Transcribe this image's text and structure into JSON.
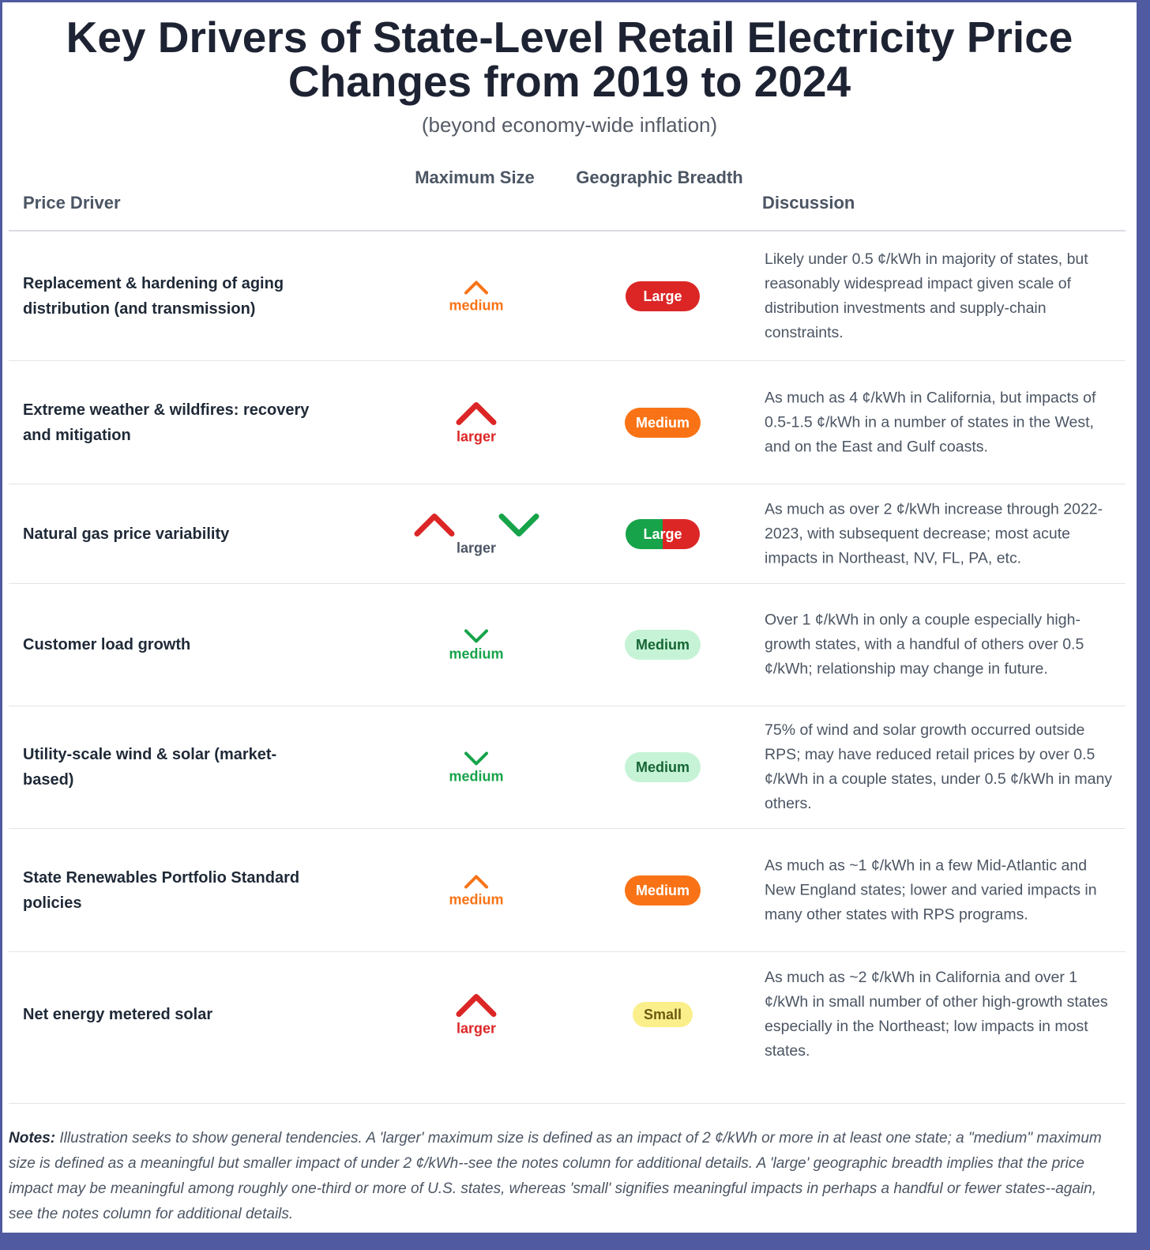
{
  "title": "Key Drivers of State-Level Retail Electricity Price Changes from 2019 to 2024",
  "subtitle": "(beyond economy-wide inflation)",
  "headers": {
    "driver": "Price Driver",
    "size": "Maximum Size",
    "breadth": "Geographic Breadth",
    "discussion": "Discussion"
  },
  "rows": [
    {
      "driver": "Replacement & hardening of aging distribution (and transmission)",
      "size_label": "medium",
      "size_direction": "up",
      "size_color": "#f97316",
      "breadth": "Large",
      "breadth_color": "#dc2626",
      "discussion": "Likely under 0.5 ¢/kWh in majority of states, but reasonably widespread impact given scale of distribution investments and supply-chain constraints."
    },
    {
      "driver": "Extreme weather & wildfires: recovery and mitigation",
      "size_label": "larger",
      "size_direction": "up",
      "size_color": "#dc2626",
      "breadth": "Medium",
      "breadth_color": "#f97316",
      "discussion": "As much as 4 ¢/kWh in California, but impacts of 0.5-1.5 ¢/kWh in a number of states in the West, and on the East and Gulf coasts."
    },
    {
      "driver": "Natural gas price variability",
      "size_label": "larger",
      "size_direction": "up-down",
      "size_color": "#4b5563",
      "breadth": "Large",
      "breadth_color": "split green/red",
      "discussion": "As much as over 2 ¢/kWh increase through 2022-2023, with subsequent decrease; most acute impacts in Northeast, NV, FL, PA, etc."
    },
    {
      "driver": "Customer load growth",
      "size_label": "medium",
      "size_direction": "down",
      "size_color": "#16a34a",
      "breadth": "Medium",
      "breadth_color": "#c6f3d6",
      "discussion": "Over 1 ¢/kWh in only a couple especially high-growth states, with a handful of others over 0.5 ¢/kWh; relationship may change in future."
    },
    {
      "driver": "Utility-scale wind & solar (market-based)",
      "size_label": "medium",
      "size_direction": "down",
      "size_color": "#16a34a",
      "breadth": "Medium",
      "breadth_color": "#c6f3d6",
      "discussion": "75% of wind and solar growth occurred outside RPS; may have reduced retail prices by over 0.5 ¢/kWh in a couple states, under 0.5 ¢/kWh in many others."
    },
    {
      "driver": "State Renewables Portfolio Standard policies",
      "size_label": "medium",
      "size_direction": "up",
      "size_color": "#f97316",
      "breadth": "Medium",
      "breadth_color": "#f97316",
      "discussion": "As much as ~1 ¢/kWh in a few Mid-Atlantic and New England states; lower and varied impacts in many other states with RPS programs."
    },
    {
      "driver": "Net energy metered solar",
      "size_label": "larger",
      "size_direction": "up",
      "size_color": "#dc2626",
      "breadth": "Small",
      "breadth_color": "#fbef8c",
      "discussion": "As much as ~2 ¢/kWh in California and over 1 ¢/kWh in small number of other high-growth states especially in the Northeast; low impacts in most states."
    }
  ],
  "notes": {
    "label": "Notes:",
    "text": "Illustration seeks to show general tendencies. A 'larger' maximum size is defined as an impact of 2 ¢/kWh or more in at least one state; a \"medium\" maximum size is defined as a meaningful but smaller impact of under 2 ¢/kWh--see the notes column for additional details. A 'large' geographic breadth implies that the price impact may be meaningful among roughly one-third or more of U.S. states, whereas 'small' signifies meaningful impacts in perhaps a handful or fewer states--again, see the notes column for additional details."
  }
}
